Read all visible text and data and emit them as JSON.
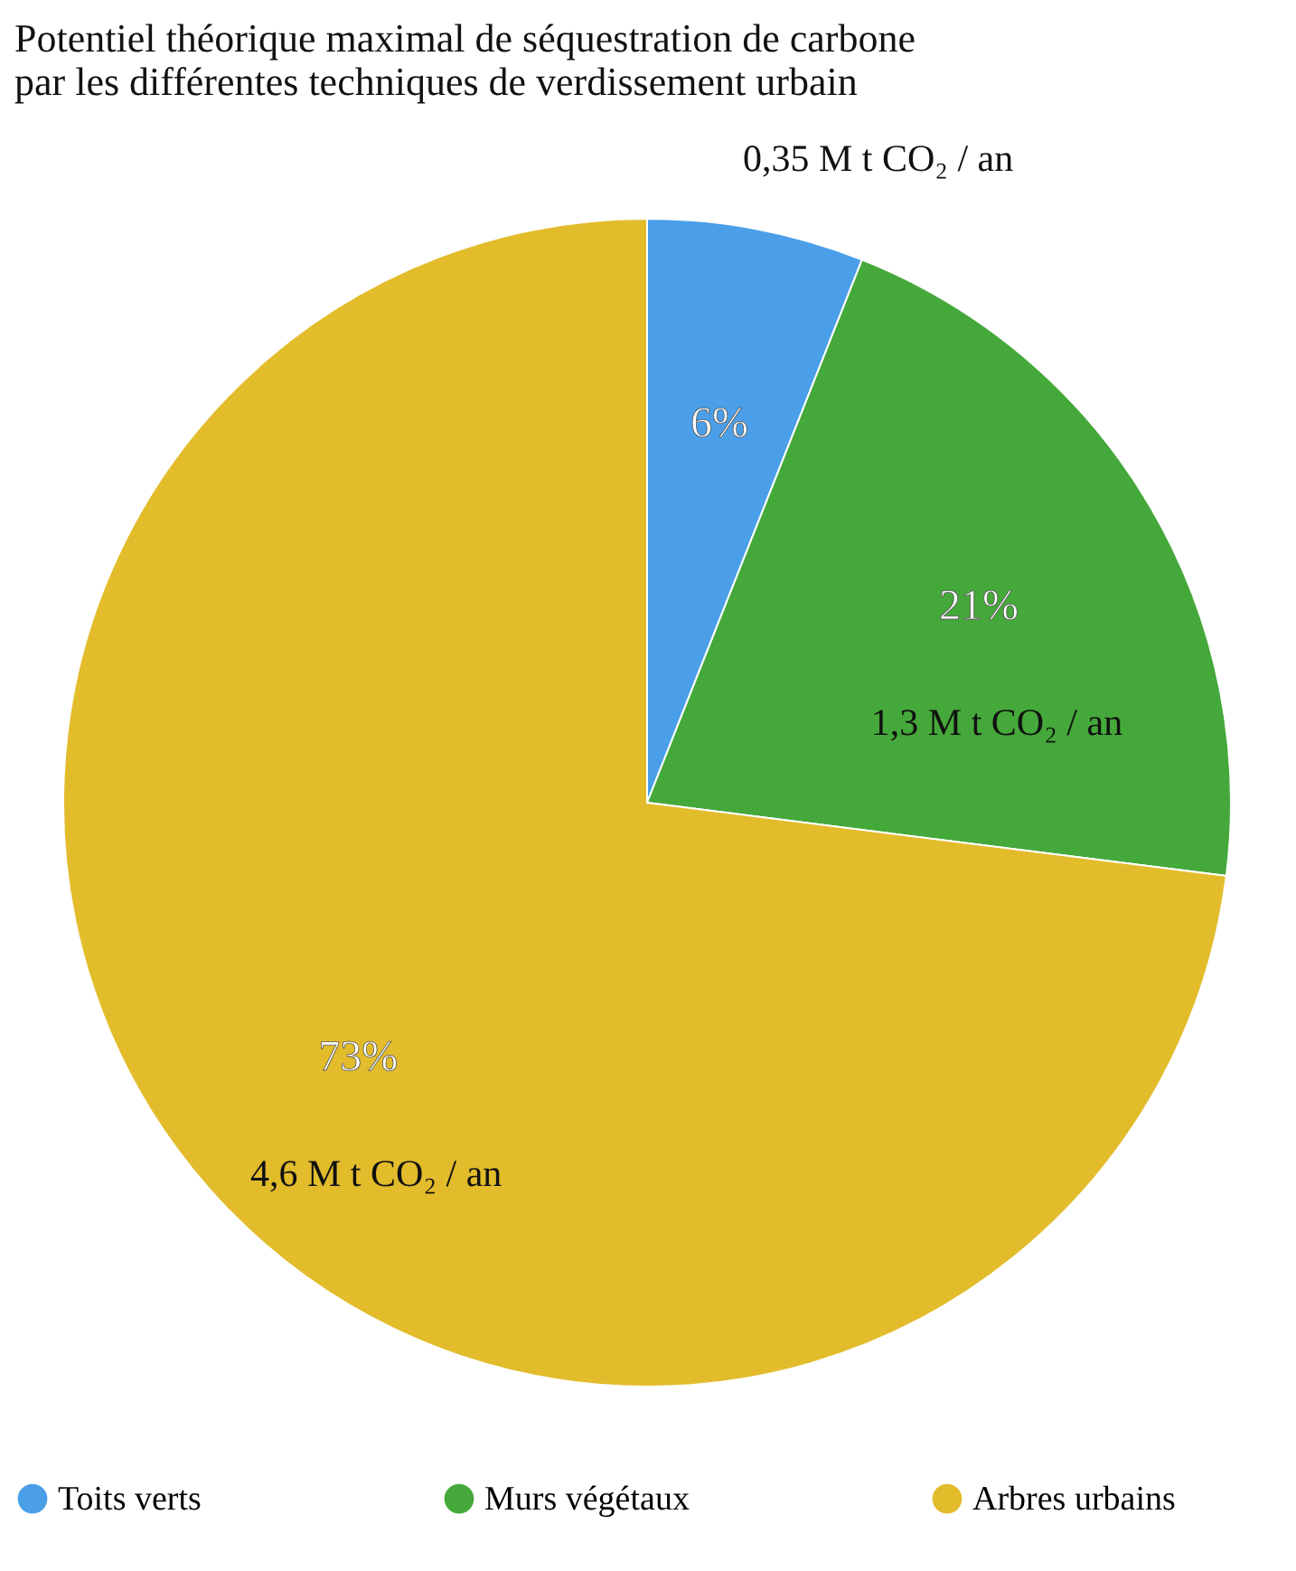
{
  "chart_data": {
    "type": "pie",
    "title": [
      "Potentiel théorique maximal de séquestration de carbone",
      "par les différentes techniques de verdissement urbain"
    ],
    "categories": [
      "Toits verts",
      "Murs végétaux",
      "Arbres urbains"
    ],
    "values": [
      6,
      21,
      73
    ],
    "colors": [
      "#4a9fe8",
      "#45a83a",
      "#e2bc2b"
    ],
    "value_labels": [
      "6%",
      "21%",
      "73%"
    ],
    "annotations": [
      "0,35 M t CO₂ / an",
      "1,3 M t CO₂ / an",
      "4,6 M t CO₂ / an"
    ],
    "legend": "bottom"
  }
}
